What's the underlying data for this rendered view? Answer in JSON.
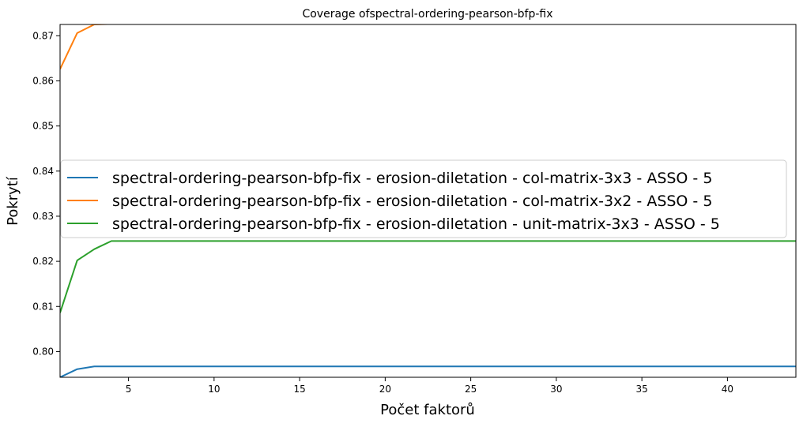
{
  "chart_data": {
    "type": "line",
    "title": "Coverage ofspectral-ordering-pearson-bfp-fix",
    "xlabel": "Počet faktorů",
    "ylabel": "Pokrytí",
    "xlim": [
      1,
      44
    ],
    "ylim": [
      0.7943,
      0.8725
    ],
    "x_ticks": [
      5,
      10,
      15,
      20,
      25,
      30,
      35,
      40
    ],
    "y_ticks": [
      0.8,
      0.81,
      0.82,
      0.83,
      0.84,
      0.85,
      0.86,
      0.87
    ],
    "x_tick_labels": [
      "5",
      "10",
      "15",
      "20",
      "25",
      "30",
      "35",
      "40"
    ],
    "y_tick_labels": [
      "0.80",
      "0.81",
      "0.82",
      "0.83",
      "0.84",
      "0.85",
      "0.86",
      "0.87"
    ],
    "grid": false,
    "legend_position": "center-right",
    "series": [
      {
        "name": "spectral-ordering-pearson-bfp-fix - erosion-diletation - col-matrix-3x3 - ASSO - 5",
        "color": "#1f77b4",
        "points": [
          [
            1,
            0.7943
          ],
          [
            2,
            0.7961
          ],
          [
            3,
            0.7967
          ],
          [
            4,
            0.7967
          ],
          [
            44,
            0.7967
          ]
        ]
      },
      {
        "name": "spectral-ordering-pearson-bfp-fix - erosion-diletation - col-matrix-3x2 - ASSO - 5",
        "color": "#ff7f0e",
        "points": [
          [
            1,
            0.8626
          ],
          [
            2,
            0.8706
          ],
          [
            3,
            0.8725
          ],
          [
            4,
            0.8726
          ],
          [
            44,
            0.8726
          ]
        ]
      },
      {
        "name": "spectral-ordering-pearson-bfp-fix - erosion-diletation - unit-matrix-3x3 - ASSO - 5",
        "color": "#2ca02c",
        "points": [
          [
            1,
            0.8086
          ],
          [
            2,
            0.8202
          ],
          [
            3,
            0.8227
          ],
          [
            4,
            0.8245
          ],
          [
            5,
            0.8245
          ],
          [
            44,
            0.8245
          ]
        ]
      }
    ]
  }
}
